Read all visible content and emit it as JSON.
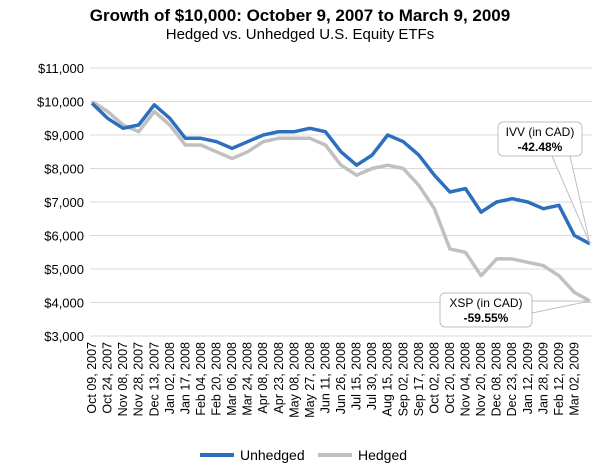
{
  "chart_data": {
    "type": "line",
    "title": "Growth of $10,000: October 9, 2007 to March 9, 2009",
    "subtitle": "Hedged vs. Unhedged U.S. Equity ETFs",
    "ylim": [
      3000,
      11000
    ],
    "yticks": [
      3000,
      4000,
      5000,
      6000,
      7000,
      8000,
      9000,
      10000,
      11000
    ],
    "ytick_labels": [
      "$3,000",
      "$4,000",
      "$5,000",
      "$6,000",
      "$7,000",
      "$8,000",
      "$9,000",
      "$10,000",
      "$11,000"
    ],
    "grid": true,
    "legend": "bottom",
    "x": [
      "Oct 09, 2007",
      "Oct 24, 2007",
      "Nov 08, 2007",
      "Nov 28, 2007",
      "Dec 13, 2007",
      "Jan 02, 2008",
      "Jan 17, 2008",
      "Feb 04, 2008",
      "Feb 20, 2008",
      "Mar 06, 2008",
      "Mar 24, 2008",
      "Apr 08, 2008",
      "Apr 23, 2008",
      "May 08, 2008",
      "May 27, 2008",
      "Jun 11, 2008",
      "Jun 26, 2008",
      "Jul 15, 2008",
      "Jul 30, 2008",
      "Aug 15, 2008",
      "Sep 02, 2008",
      "Sep 17, 2008",
      "Oct 02, 2008",
      "Oct 20, 2008",
      "Nov 04, 2008",
      "Nov 20, 2008",
      "Dec 08, 2008",
      "Dec 23, 2008",
      "Jan 12, 2009",
      "Jan 28, 2009",
      "Feb 12, 2009",
      "Mar 02, 2009",
      "Mar 09, 2009"
    ],
    "xtick_labels": [
      "Oct 09, 2007",
      "Oct 24, 2007",
      "Nov 08, 2007",
      "Nov 28, 2007",
      "Dec 13, 2007",
      "Jan 02, 2008",
      "Jan 17, 2008",
      "Feb 04, 2008",
      "Feb 20, 2008",
      "Mar 06, 2008",
      "Mar 24, 2008",
      "Apr 08, 2008",
      "Apr 23, 2008",
      "May 08, 2008",
      "May 27, 2008",
      "Jun 11, 2008",
      "Jun 26, 2008",
      "Jul 15, 2008",
      "Jul 30, 2008",
      "Aug 15, 2008",
      "Sep 02, 2008",
      "Sep 17, 2008",
      "Oct 02, 2008",
      "Oct 20, 2008",
      "Nov 04, 2008",
      "Nov 20, 2008",
      "Dec 08, 2008",
      "Dec 23, 2008",
      "Jan 12, 2009",
      "Jan 28, 2009",
      "Feb 12, 2009",
      "Mar 02, 2009"
    ],
    "series": [
      {
        "name": "Unhedged",
        "color": "#2e6fbd",
        "values": [
          9950,
          9500,
          9200,
          9300,
          9900,
          9500,
          8900,
          8900,
          8800,
          8600,
          8800,
          9000,
          9100,
          9100,
          9200,
          9100,
          8500,
          8100,
          8400,
          9000,
          8800,
          8400,
          7800,
          7300,
          7400,
          6700,
          7000,
          7100,
          7000,
          6800,
          6900,
          6000,
          5752
        ]
      },
      {
        "name": "Hedged",
        "color": "#c0c0c0",
        "values": [
          10000,
          9700,
          9300,
          9100,
          9700,
          9300,
          8700,
          8700,
          8500,
          8300,
          8500,
          8800,
          8900,
          8900,
          8900,
          8700,
          8100,
          7800,
          8000,
          8100,
          8000,
          7500,
          6800,
          5600,
          5500,
          4800,
          5300,
          5300,
          5200,
          5100,
          4800,
          4300,
          4045
        ]
      }
    ],
    "annotations": [
      {
        "label": "IVV (in CAD)",
        "value": "-42.48%",
        "series": "Unhedged"
      },
      {
        "label": "XSP (in CAD)",
        "value": "-59.55%",
        "series": "Hedged"
      }
    ]
  }
}
